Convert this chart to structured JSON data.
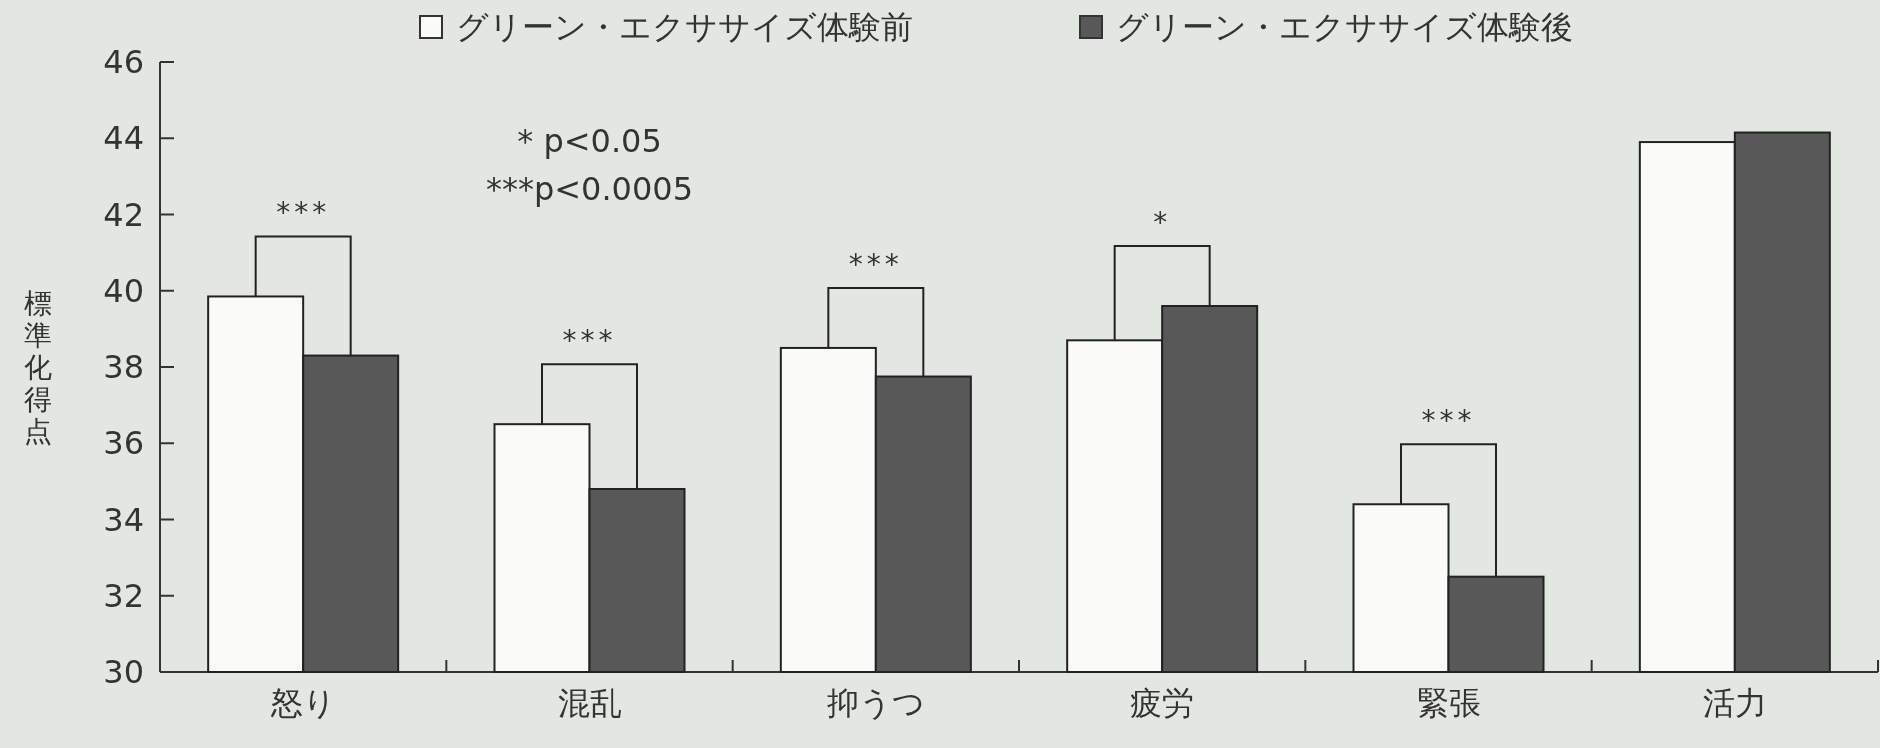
{
  "chart_data": {
    "type": "bar",
    "ylabel": "標準化得点",
    "categories": [
      "怒り",
      "混乱",
      "抑うつ",
      "疲労",
      "緊張",
      "活力"
    ],
    "series": [
      {
        "name": "グリーン・エクササイズ体験前",
        "color": "#fafaf8",
        "values": [
          39.85,
          36.5,
          38.5,
          38.7,
          34.4,
          43.9
        ]
      },
      {
        "name": "グリーン・エクササイズ体験後",
        "color": "#585858",
        "values": [
          38.3,
          34.8,
          37.75,
          39.6,
          32.5,
          44.15
        ]
      }
    ],
    "ylim": [
      30,
      46
    ],
    "yticks": [
      30,
      32,
      34,
      36,
      38,
      40,
      42,
      44,
      46
    ],
    "grid": false,
    "legend": "top",
    "annotations": [
      "* p<0.05",
      "***p<0.0005",
      "***",
      "***",
      "***",
      "*",
      "***"
    ]
  }
}
